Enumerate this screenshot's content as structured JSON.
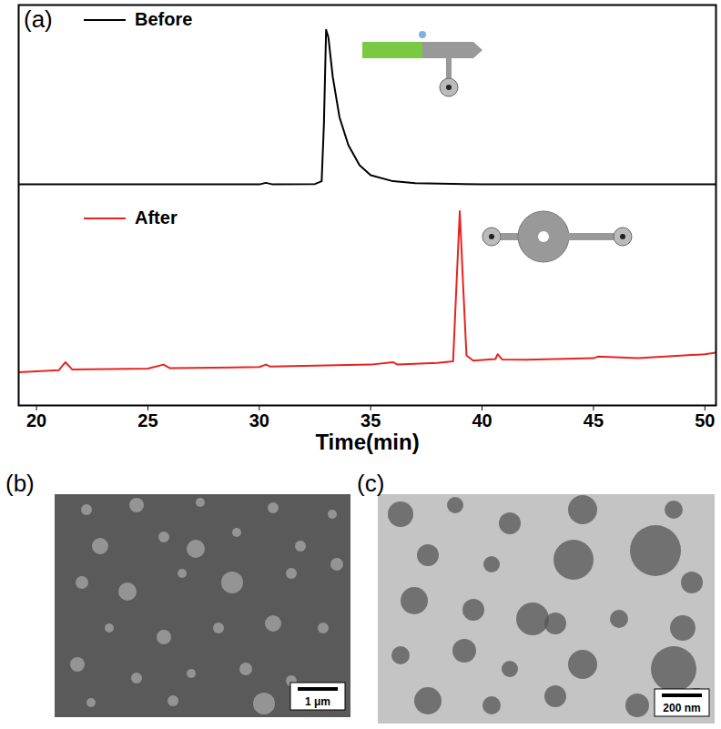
{
  "chart_data": {
    "type": "line",
    "annotations": [
      "(a)"
    ],
    "x_label": "Time(min)",
    "xlim": [
      19.2,
      50.5
    ],
    "xticks": [
      20,
      25,
      30,
      35,
      40,
      45,
      50
    ],
    "ylim": [
      0,
      100
    ],
    "tick_labels": "x",
    "grid": false,
    "legend": "upper left",
    "series": [
      {
        "name": "Before",
        "color": "#000000",
        "x": [
          19.2,
          30,
          30.3,
          30.6,
          32.5,
          32.8,
          32.9,
          33.0,
          33.1,
          33.3,
          33.6,
          34,
          34.5,
          35,
          36,
          37,
          40,
          50.5
        ],
        "values": [
          55.2,
          55.2,
          55.6,
          55.2,
          55.3,
          56,
          70,
          93.8,
          92,
          82,
          72,
          65,
          60,
          57.5,
          56,
          55.5,
          55.2,
          55.2
        ]
      },
      {
        "name": "After",
        "color": "#e8231f",
        "x": [
          19.2,
          21.0,
          21.3,
          21.6,
          25,
          25.7,
          26,
          30,
          30.3,
          30.5,
          35,
          36,
          36.2,
          38,
          38.7,
          38.85,
          39.0,
          39.15,
          39.3,
          39.6,
          40.6,
          40.7,
          40.9,
          42,
          45,
          45.2,
          47,
          50,
          50.5
        ],
        "values": [
          8.3,
          8.8,
          10.8,
          9,
          9.2,
          10.2,
          9.3,
          9.6,
          10.2,
          9.7,
          10.2,
          10.8,
          10.2,
          10.6,
          11,
          30,
          48.5,
          30,
          12.5,
          11.2,
          11.6,
          12.8,
          11.5,
          11.4,
          11.8,
          12.2,
          11.8,
          12.8,
          13.2
        ]
      }
    ]
  },
  "images": [
    {
      "label": "(b)",
      "scale_bar": "1 μm"
    },
    {
      "label": "(c)",
      "scale_bar": "200 nm"
    }
  ]
}
